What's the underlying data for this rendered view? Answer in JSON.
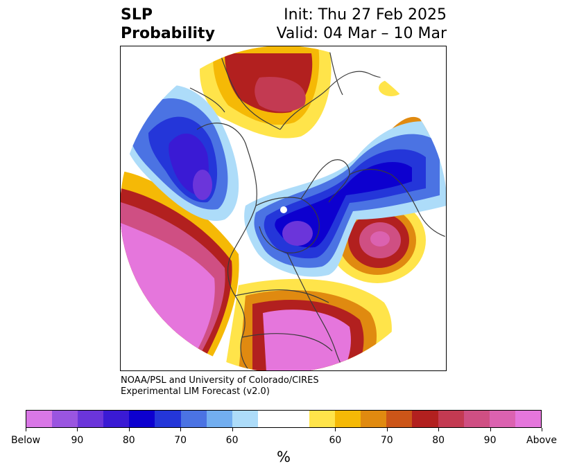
{
  "title": {
    "left_lines": [
      "SLP",
      "Probability"
    ],
    "right_lines": [
      "Init: Thu 27 Feb 2025",
      "Valid: 04 Mar – 10 Mar"
    ]
  },
  "credit": {
    "line1": "NOAA/PSL and University of Colorado/CIRES",
    "line2": "Experimental LIM Forecast (v2.0)"
  },
  "colorbar": {
    "colors": [
      "#d977e6",
      "#9a55e0",
      "#6b35da",
      "#3a1ad4",
      "#0d00cf",
      "#2436d9",
      "#4b73e3",
      "#72aef0",
      "#addcf9",
      "#ffffff",
      "#ffe44a",
      "#f5b906",
      "#e08a10",
      "#cc5518",
      "#b2201f",
      "#c33a52",
      "#cf4f83",
      "#db62b0",
      "#e576dc"
    ],
    "tick_labels": [
      "Below",
      "90",
      "80",
      "70",
      "60",
      "60",
      "70",
      "80",
      "90",
      "Above"
    ],
    "unit": "%"
  },
  "map": {
    "projection": "north polar stereographic",
    "features": [
      "coastlines",
      "country borders",
      "US state borders"
    ]
  }
}
